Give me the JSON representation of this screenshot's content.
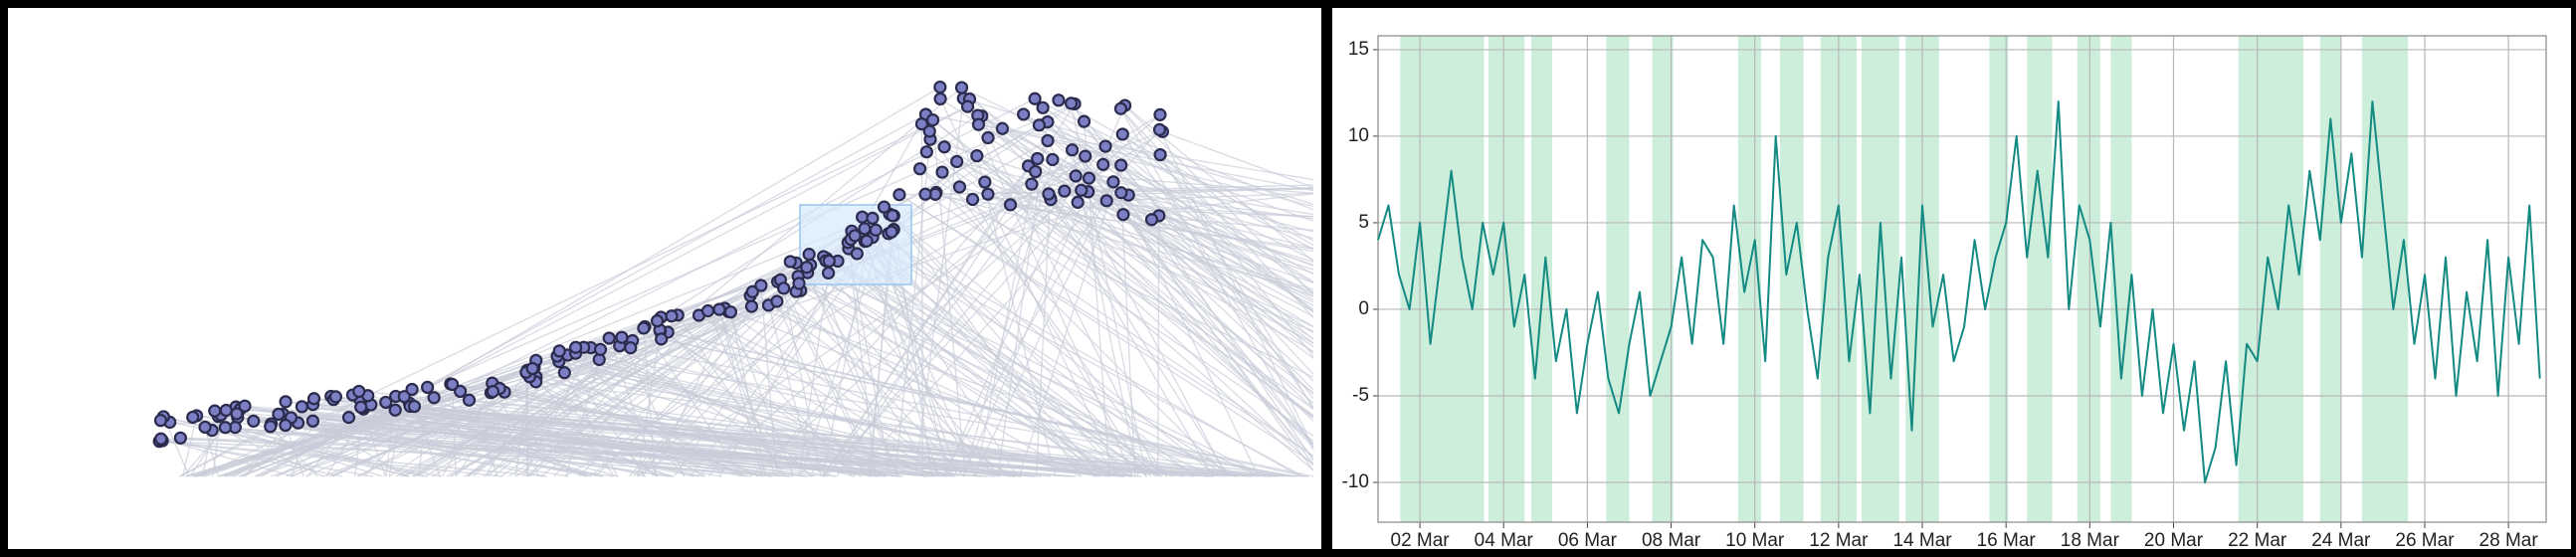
{
  "chart_data": {
    "type": "line",
    "x": [
      1,
      1.25,
      1.5,
      1.75,
      2,
      2.25,
      2.5,
      2.75,
      3,
      3.25,
      3.5,
      3.75,
      4,
      4.25,
      4.5,
      4.75,
      5,
      5.25,
      5.5,
      5.75,
      6,
      6.25,
      6.5,
      6.75,
      7,
      7.25,
      7.5,
      7.75,
      8,
      8.25,
      8.5,
      8.75,
      9,
      9.25,
      9.5,
      9.75,
      10,
      10.25,
      10.5,
      10.75,
      11,
      11.25,
      11.5,
      11.75,
      12,
      12.25,
      12.5,
      12.75,
      13,
      13.25,
      13.5,
      13.75,
      14,
      14.25,
      14.5,
      14.75,
      15,
      15.25,
      15.5,
      15.75,
      16,
      16.25,
      16.5,
      16.75,
      17,
      17.25,
      17.5,
      17.75,
      18,
      18.25,
      18.5,
      18.75,
      19,
      19.25,
      19.5,
      19.75,
      20,
      20.25,
      20.5,
      20.75,
      21,
      21.25,
      21.5,
      21.75,
      22,
      22.25,
      22.5,
      22.75,
      23,
      23.25,
      23.5,
      23.75,
      24,
      24.25,
      24.5,
      24.75,
      25,
      25.25,
      25.5,
      25.75,
      26,
      26.25,
      26.5,
      26.75,
      27,
      27.25,
      27.5,
      27.75,
      28,
      28.25,
      28.5,
      28.75
    ],
    "series": [
      {
        "color": "#138a82",
        "values": [
          4,
          6,
          2,
          0,
          5,
          -2,
          3,
          8,
          3,
          0,
          5,
          2,
          5,
          -1,
          2,
          -4,
          3,
          -3,
          0,
          -6,
          -2,
          1,
          -4,
          -6,
          -2,
          1,
          -5,
          -3,
          -1,
          3,
          -2,
          4,
          3,
          -2,
          6,
          1,
          4,
          -3,
          10,
          2,
          5,
          0,
          -4,
          3,
          6,
          -3,
          2,
          -6,
          5,
          -4,
          3,
          -7,
          6,
          -1,
          2,
          -3,
          -1,
          4,
          0,
          3,
          5,
          10,
          3,
          8,
          3,
          12,
          0,
          6,
          4,
          -1,
          5,
          -4,
          2,
          -5,
          0,
          -6,
          -2,
          -7,
          -3,
          -10,
          -8,
          -3,
          -9,
          -2,
          -3,
          3,
          0,
          6,
          2,
          8,
          4,
          11,
          5,
          9,
          3,
          12,
          6,
          0,
          4,
          -2,
          2,
          -4,
          3,
          -5,
          1,
          -3,
          4,
          -5,
          3,
          -2,
          6,
          -4
        ]
      }
    ],
    "shade_color": "#cdeedb",
    "shaded_spans": [
      [
        1.53,
        3.53
      ],
      [
        3.64,
        4.5
      ],
      [
        4.66,
        5.16
      ],
      [
        6.45,
        7.0
      ],
      [
        7.55,
        8.05
      ],
      [
        9.6,
        10.15
      ],
      [
        10.6,
        11.16
      ],
      [
        11.57,
        12.43
      ],
      [
        12.55,
        13.45
      ],
      [
        13.6,
        14.4
      ],
      [
        15.6,
        16.05
      ],
      [
        16.5,
        17.1
      ],
      [
        17.7,
        18.25
      ],
      [
        18.5,
        19.0
      ],
      [
        21.55,
        23.1
      ],
      [
        23.5,
        24.0
      ],
      [
        24.5,
        25.6
      ]
    ],
    "xlim": [
      1,
      28.9
    ],
    "xticks": [
      {
        "value": 2,
        "label": "02 Mar"
      },
      {
        "value": 4,
        "label": "04 Mar"
      },
      {
        "value": 6,
        "label": "06 Mar"
      },
      {
        "value": 8,
        "label": "08 Mar"
      },
      {
        "value": 10,
        "label": "10 Mar"
      },
      {
        "value": 12,
        "label": "12 Mar"
      },
      {
        "value": 14,
        "label": "14 Mar"
      },
      {
        "value": 16,
        "label": "16 Mar"
      },
      {
        "value": 18,
        "label": "18 Mar"
      },
      {
        "value": 20,
        "label": "20 Mar"
      },
      {
        "value": 22,
        "label": "22 Mar"
      },
      {
        "value": 24,
        "label": "24 Mar"
      },
      {
        "value": 26,
        "label": "26 Mar"
      },
      {
        "value": 28,
        "label": "28 Mar"
      }
    ],
    "ylim": [
      -12.3,
      15.8
    ],
    "yticks": [
      -10,
      -5,
      0,
      5,
      10,
      15
    ],
    "grid": true
  }
}
